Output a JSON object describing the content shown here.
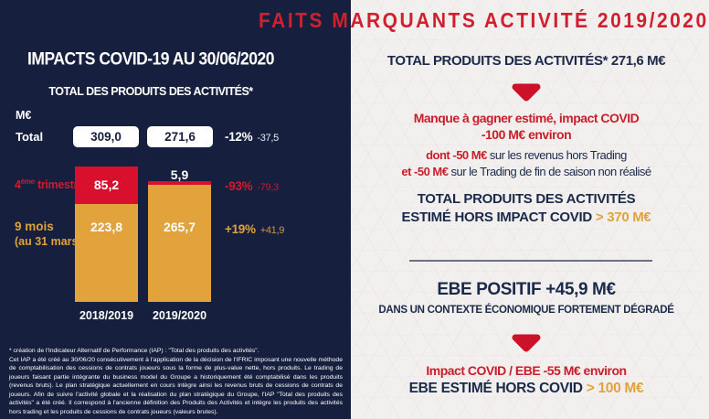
{
  "colors": {
    "navy": "#161f3d",
    "red": "#d8102e",
    "text_red": "#c81e2b",
    "gold": "#e2a23c",
    "light_bg": "#f2f0ee"
  },
  "main_title": "FAITS MARQUANTS ACTIVITÉ 2019/2020",
  "left_panel": {
    "title": "IMPACTS COVID-19 AU 30/06/2020",
    "subtitle": "TOTAL DES PRODUITS DES ACTIVITÉS*",
    "unit_label": "M€",
    "total_label": "Total",
    "q4_label_num": "4",
    "q4_label_sup": "ème",
    "q4_label_rest": " trimestre",
    "nine_months_label": "9 mois",
    "nine_months_sub": "(au 31 mars)",
    "footnote_line1": "* création de l'Indicateur Alternatif de Performance (IAP) : \"Total des produits des activités\".",
    "footnote_body": "Cet IAP a été créé au 30/06/20 consécutivement à l'application de la décision de l'IFRIC imposant une nouvelle méthode de comptabilisation des cessions de contrats joueurs sous la forme de plus-value nette, hors produits. Le trading de joueurs faisant partie intégrante du business model du Groupe a historiquement été comptabilisé dans les produits (revenus bruts). Le plan stratégique actuellement en cours intègre ainsi les revenus bruts de cessions de contrats de joueurs. Afin de suivre l'activité globale et la réalisation du plan stratégique du Groupe, l'IAP \"Total des produits des activités\" a été créé. Il correspond à l'ancienne définition des Produits des Activités et intègre les produits des activités hors trading et les produits de cessions de contrats joueurs (valeurs brutes)."
  },
  "chart_data": {
    "type": "bar",
    "stacked": true,
    "title": "TOTAL DES PRODUITS DES ACTIVITÉS*",
    "ylabel": "M€",
    "categories": [
      "2018/2019",
      "2019/2020"
    ],
    "series": [
      {
        "name": "4ème trimestre",
        "color": "#d8102e",
        "values": [
          85.2,
          5.9
        ],
        "labels": [
          "85,2",
          "5,9"
        ]
      },
      {
        "name": "9 mois (au 31 mars)",
        "color": "#e2a23c",
        "values": [
          223.8,
          265.7
        ],
        "labels": [
          "223,8",
          "265,7"
        ]
      }
    ],
    "totals": [
      309.0,
      271.6
    ],
    "totals_labels": [
      "309,0",
      "271,6"
    ],
    "changes": {
      "total": {
        "pct": "-12%",
        "abs": "-37,5"
      },
      "q4": {
        "pct": "-93%",
        "abs": "-79,3"
      },
      "nine_months": {
        "pct": "+19%",
        "abs": "+41,9"
      }
    },
    "legend_position": "left",
    "grid": false
  },
  "right_panel": {
    "headline": "TOTAL PRODUITS DES ACTIVITÉS* 271,6 M€",
    "covid_loss_line1": "Manque à gagner estimé, impact COVID",
    "covid_loss_line2": "-100 M€ environ",
    "detail1_red": "dont -50 M€",
    "detail1_rest": "sur les revenus hors Trading",
    "detail2_red": "et -50 M€",
    "detail2_rest": "sur le Trading de fin de saison non réalisé",
    "estimate_line1": "TOTAL PRODUITS DES ACTIVITÉS",
    "estimate_line2_navy": "ESTIMÉ HORS IMPACT COVID",
    "estimate_line2_gold": "> 370 M€",
    "ebe_line1": "EBE POSITIF +45,9 M€",
    "ebe_line2": "DANS UN CONTEXTE ÉCONOMIQUE FORTEMENT DÉGRADÉ",
    "ebe_covid_line1": "Impact COVID / EBE -55 M€ environ",
    "ebe_est_navy": "EBE ESTIMÉ HORS COVID",
    "ebe_est_gold": "> 100 M€"
  }
}
